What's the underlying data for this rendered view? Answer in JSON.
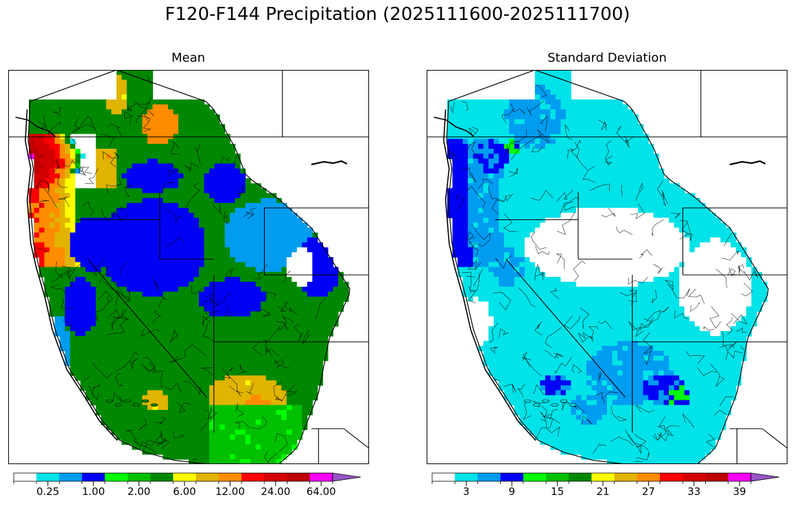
{
  "figure": {
    "title": "F120-F144 Precipitation (2025111600-2025111700)"
  },
  "chart_data": [
    {
      "type": "heatmap",
      "title": "Mean",
      "region": "Western United States river basins",
      "colorbar": {
        "levels": [
          0,
          0.1,
          0.25,
          0.5,
          1.0,
          1.5,
          2.0,
          4.0,
          6.0,
          8.0,
          12.0,
          16.0,
          24.0,
          32.0,
          64.0,
          96.0
        ],
        "colors": [
          "#ffffff",
          "#00e3e8",
          "#009cf0",
          "#0000f5",
          "#00ff00",
          "#00c000",
          "#008800",
          "#ffff00",
          "#e0b400",
          "#fd8c00",
          "#fd0000",
          "#d40000",
          "#bc0000",
          "#f800fc",
          "#9855c8"
        ],
        "tick_labels": [
          "0.25",
          "1.00",
          "2.00",
          "6.00",
          "12.00",
          "24.00",
          "64.00"
        ],
        "extend": "max"
      }
    },
    {
      "type": "heatmap",
      "title": "Standard Deviation",
      "region": "Western United States river basins",
      "colorbar": {
        "levels": [
          0,
          1.5,
          4.5,
          7.5,
          10.5,
          13.5,
          16.5,
          19.5,
          22.5,
          25.5,
          28.5,
          31.5,
          34.5,
          37.5,
          40.5,
          43.5
        ],
        "colors": [
          "#ffffff",
          "#00e3e8",
          "#009cf0",
          "#0000f5",
          "#00ff00",
          "#00c000",
          "#008800",
          "#ffff00",
          "#e0b400",
          "#fd8c00",
          "#fd0000",
          "#d40000",
          "#bc0000",
          "#f800fc",
          "#9855c8"
        ],
        "tick_labels": [
          "3",
          "9",
          "15",
          "21",
          "27",
          "33",
          "39"
        ],
        "extend": "max"
      }
    }
  ]
}
